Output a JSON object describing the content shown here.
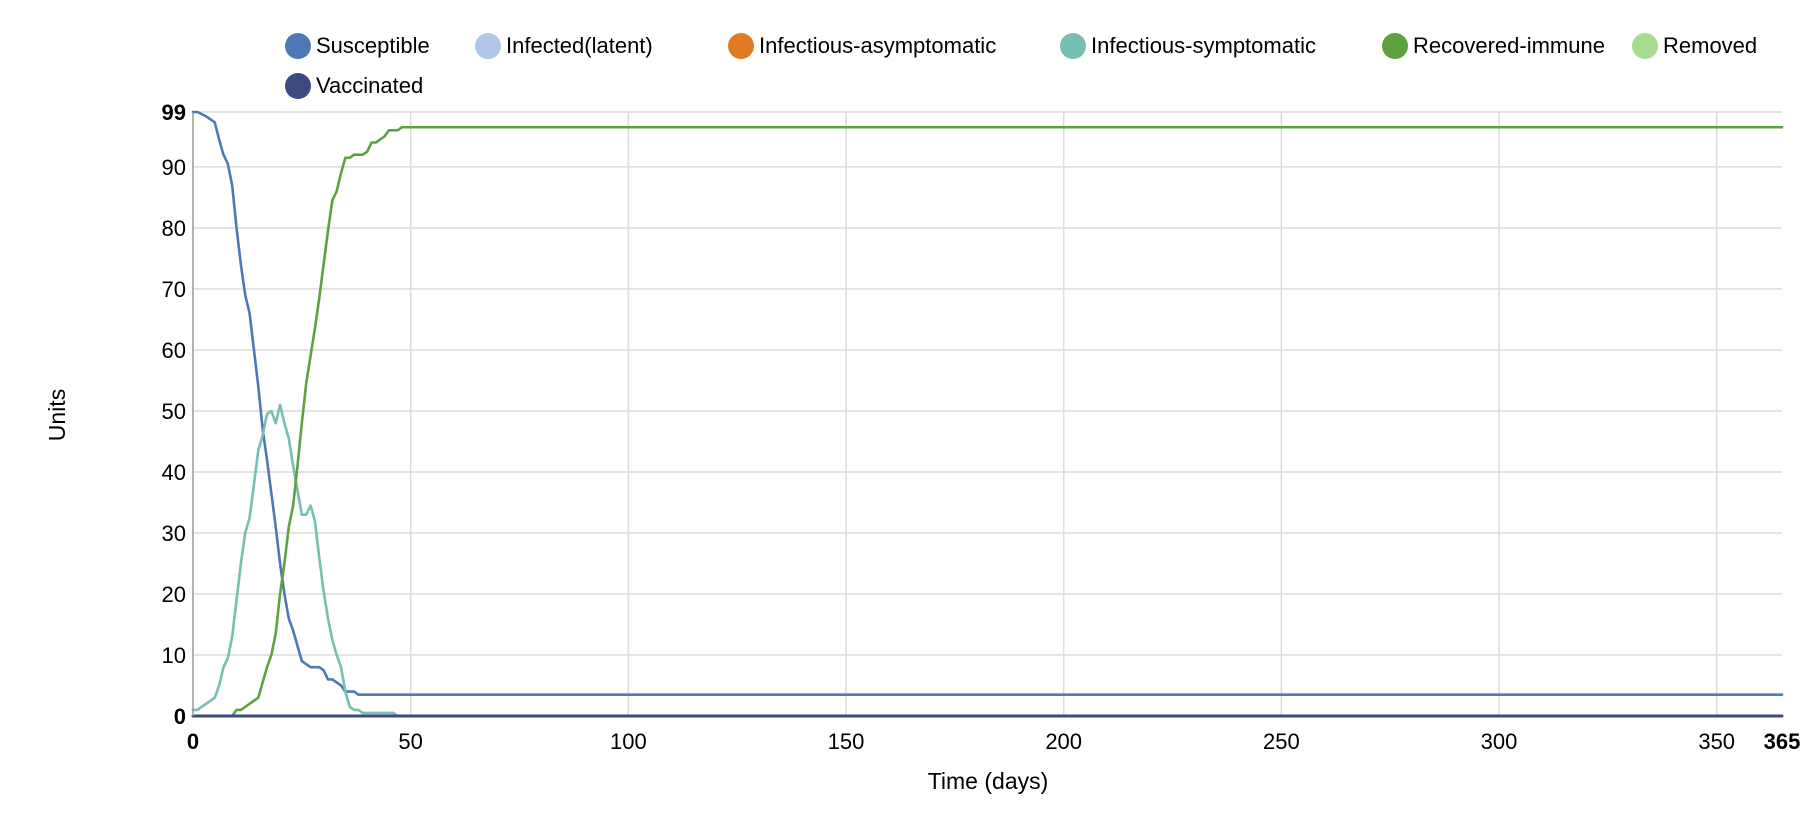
{
  "chart_data": {
    "type": "line",
    "xlabel": "Time (days)",
    "ylabel": "Units",
    "xlim": [
      0,
      365
    ],
    "ylim": [
      0,
      99
    ],
    "x_ticks": [
      0,
      50,
      100,
      150,
      200,
      250,
      300,
      350,
      365
    ],
    "y_ticks": [
      0,
      10,
      20,
      30,
      40,
      50,
      60,
      70,
      80,
      90,
      99
    ],
    "grid": true,
    "legend_position": "top",
    "series": [
      {
        "name": "Susceptible",
        "color": "#4e79b5",
        "points": [
          [
            0,
            99
          ],
          [
            1,
            99
          ],
          [
            3,
            98.3
          ],
          [
            5,
            97.3
          ],
          [
            6,
            94.5
          ],
          [
            7,
            92
          ],
          [
            8,
            90.5
          ],
          [
            9,
            87
          ],
          [
            10,
            80
          ],
          [
            11,
            74
          ],
          [
            12,
            69
          ],
          [
            13,
            66
          ],
          [
            14,
            60
          ],
          [
            15,
            54
          ],
          [
            16,
            47
          ],
          [
            17,
            42
          ],
          [
            18,
            36.5
          ],
          [
            19,
            31
          ],
          [
            20,
            25
          ],
          [
            21,
            20
          ],
          [
            22,
            16
          ],
          [
            23,
            14
          ],
          [
            24,
            11.5
          ],
          [
            25,
            9
          ],
          [
            26,
            8.5
          ],
          [
            27,
            8
          ],
          [
            29,
            8
          ],
          [
            30,
            7.5
          ],
          [
            31,
            6
          ],
          [
            32,
            6
          ],
          [
            33,
            5.5
          ],
          [
            34,
            5
          ],
          [
            35,
            4
          ],
          [
            37,
            4
          ],
          [
            38,
            3.5
          ],
          [
            365,
            3.5
          ]
        ]
      },
      {
        "name": "Infected(latent)",
        "color": "#b3c5e8",
        "points": [
          [
            0,
            0
          ],
          [
            365,
            0
          ]
        ]
      },
      {
        "name": "Infectious-asymptomatic",
        "color": "#e07b24",
        "points": [
          [
            0,
            0
          ],
          [
            365,
            0
          ]
        ]
      },
      {
        "name": "Infectious-symptomatic",
        "color": "#76bfb2",
        "points": [
          [
            0,
            1
          ],
          [
            1,
            1
          ],
          [
            3,
            2
          ],
          [
            5,
            3
          ],
          [
            6,
            5
          ],
          [
            7,
            8
          ],
          [
            8,
            9.5
          ],
          [
            9,
            13
          ],
          [
            10,
            19
          ],
          [
            11,
            25
          ],
          [
            12,
            30
          ],
          [
            13,
            32.5
          ],
          [
            14,
            38
          ],
          [
            15,
            43.5
          ],
          [
            16,
            46
          ],
          [
            17,
            49.5
          ],
          [
            18,
            50
          ],
          [
            19,
            48
          ],
          [
            20,
            51
          ],
          [
            21,
            48
          ],
          [
            22,
            45.5
          ],
          [
            23,
            41
          ],
          [
            24,
            37
          ],
          [
            25,
            33
          ],
          [
            26,
            33
          ],
          [
            27,
            34.5
          ],
          [
            28,
            32
          ],
          [
            29,
            26
          ],
          [
            30,
            20.5
          ],
          [
            31,
            16
          ],
          [
            32,
            12.5
          ],
          [
            33,
            10
          ],
          [
            34,
            8
          ],
          [
            35,
            4
          ],
          [
            36,
            1.5
          ],
          [
            37,
            1
          ],
          [
            38,
            1
          ],
          [
            39,
            0.5
          ],
          [
            46,
            0.5
          ],
          [
            47,
            0
          ]
        ]
      },
      {
        "name": "Recovered-immune",
        "color": "#5fa03f",
        "points": [
          [
            0,
            0
          ],
          [
            9,
            0
          ],
          [
            10,
            1
          ],
          [
            11,
            1
          ],
          [
            13,
            2
          ],
          [
            15,
            3
          ],
          [
            16,
            5.5
          ],
          [
            17,
            8
          ],
          [
            18,
            10
          ],
          [
            19,
            13.5
          ],
          [
            20,
            20
          ],
          [
            21,
            25
          ],
          [
            22,
            31
          ],
          [
            23,
            34.5
          ],
          [
            24,
            41
          ],
          [
            25,
            48
          ],
          [
            26,
            54.5
          ],
          [
            27,
            59
          ],
          [
            28,
            63.5
          ],
          [
            29,
            68.5
          ],
          [
            30,
            74
          ],
          [
            31,
            79.5
          ],
          [
            32,
            84.5
          ],
          [
            33,
            86
          ],
          [
            34,
            89
          ],
          [
            35,
            91.5
          ],
          [
            36,
            91.5
          ],
          [
            37,
            92
          ],
          [
            39,
            92
          ],
          [
            40,
            92.5
          ],
          [
            41,
            94
          ],
          [
            42,
            94
          ],
          [
            44,
            95
          ],
          [
            45,
            96
          ],
          [
            47,
            96
          ],
          [
            48,
            96.5
          ],
          [
            365,
            96.5
          ]
        ]
      },
      {
        "name": "Removed",
        "color": "#a8dc8e",
        "points": [
          [
            0,
            0
          ],
          [
            365,
            0
          ]
        ]
      },
      {
        "name": "Vaccinated",
        "color": "#3c4a82",
        "points": [
          [
            0,
            0
          ],
          [
            365,
            0
          ]
        ]
      }
    ]
  }
}
